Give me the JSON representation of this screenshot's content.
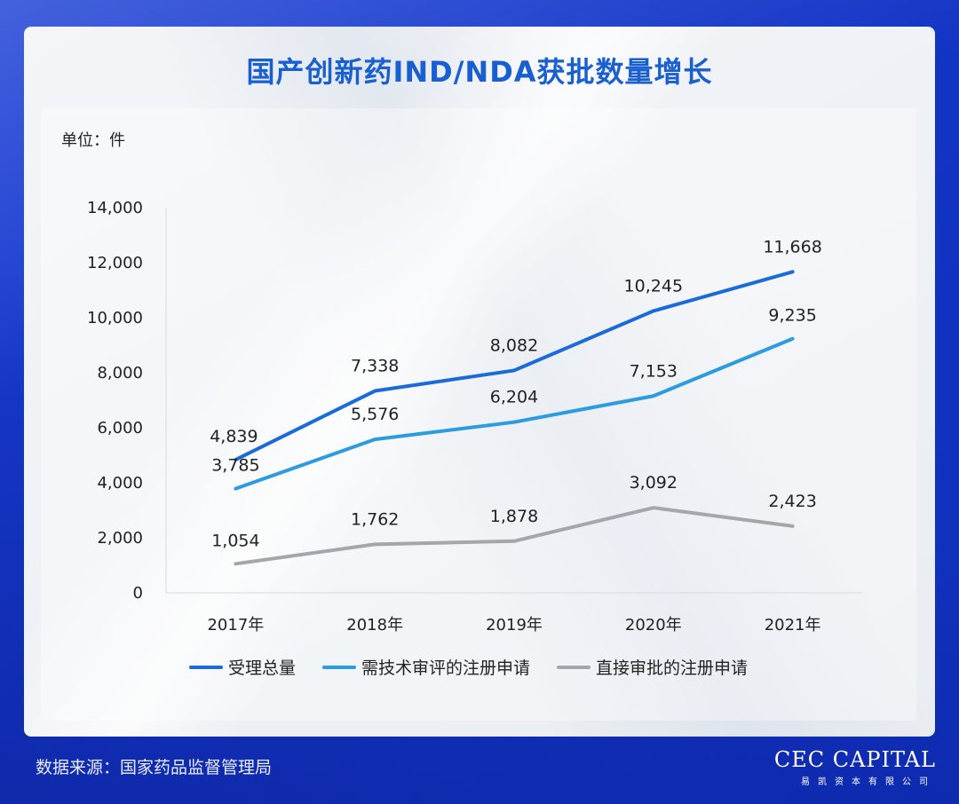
{
  "header": {
    "title": "国产创新药IND/NDA获批数量增长"
  },
  "unit_label": "单位：件",
  "footer": {
    "source": "数据来源：国家药品监督管理局",
    "logo_main": "CEC CAPITAL",
    "logo_sub": "易凯资本有限公司"
  },
  "chart_data": {
    "type": "line",
    "title": "国产创新药IND/NDA获批数量增长",
    "categories": [
      "2017年",
      "2018年",
      "2019年",
      "2020年",
      "2021年"
    ],
    "ylim": [
      0,
      14000
    ],
    "yticks": [
      0,
      2000,
      4000,
      6000,
      8000,
      10000,
      12000,
      14000
    ],
    "ytick_labels": [
      "0",
      "2,000",
      "4,000",
      "6,000",
      "8,000",
      "10,000",
      "12,000",
      "14,000"
    ],
    "grid": false,
    "legend_position": "bottom",
    "series": [
      {
        "name": "受理总量",
        "color": "#1a6ad9",
        "values": [
          4839,
          7338,
          8082,
          10245,
          11668
        ],
        "labels": [
          "4,839",
          "7,338",
          "8,082",
          "10,245",
          "11,668"
        ]
      },
      {
        "name": "需技术审评的注册申请",
        "color": "#2c9be0",
        "values": [
          3785,
          5576,
          6204,
          7153,
          9235
        ],
        "labels": [
          "3,785",
          "5,576",
          "6,204",
          "7,153",
          "9,235"
        ]
      },
      {
        "name": "直接审批的注册申请",
        "color": "#a3a6ab",
        "values": [
          1054,
          1762,
          1878,
          3092,
          2423
        ],
        "labels": [
          "1,054",
          "1,762",
          "1,878",
          "3,092",
          "2,423"
        ]
      }
    ]
  }
}
